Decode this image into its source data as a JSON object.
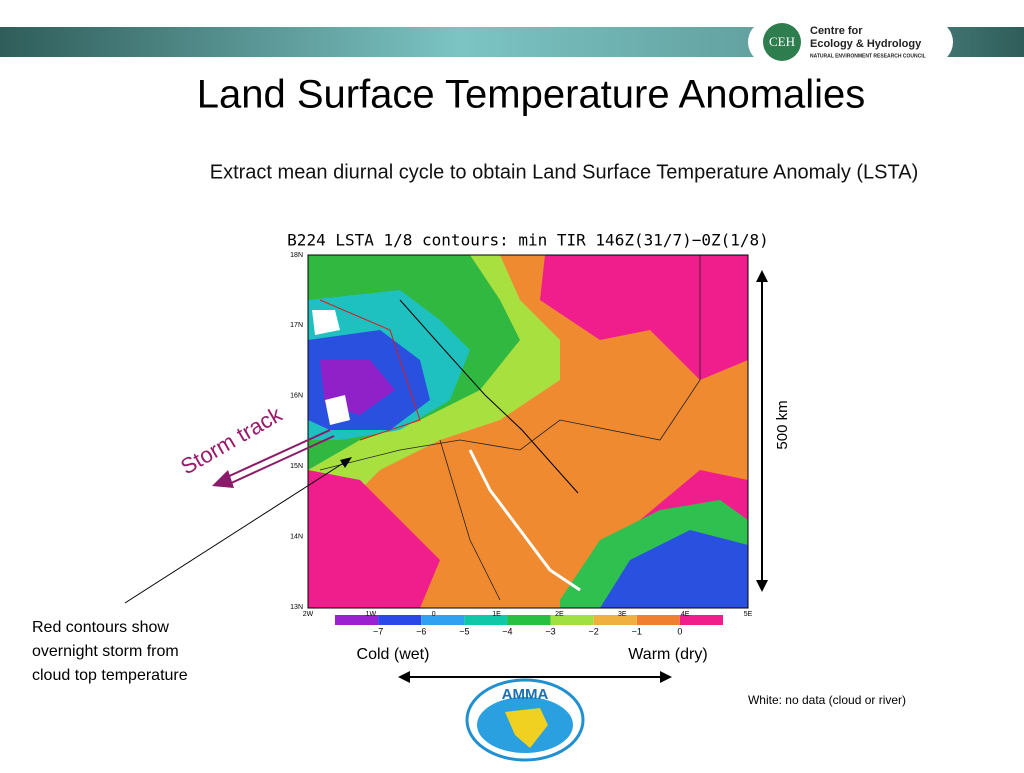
{
  "header": {
    "logo_initials": "CEH",
    "logo_line1": "Centre for",
    "logo_line2": "Ecology & Hydrology",
    "logo_line3": "NATURAL ENVIRONMENT RESEARCH COUNCIL"
  },
  "title": "Land Surface Temperature Anomalies",
  "subtitle": "Extract mean diurnal cycle to obtain Land Surface Temperature Anomaly (LSTA)",
  "figure": {
    "title": "B224 LSTA 1/8 contours: min TIR 146Z(31/7)−0Z(1/8)",
    "lat_labels": [
      "18N",
      "17N",
      "16N",
      "15N",
      "14N",
      "13N"
    ],
    "lon_labels": [
      "2W",
      "1W",
      "0",
      "1E",
      "2E",
      "3E",
      "4E",
      "5E"
    ],
    "colorbar_labels": [
      "−7",
      "−6",
      "−5",
      "−4",
      "−3",
      "−2",
      "−1",
      "0"
    ]
  },
  "annotations": {
    "storm_track": "Storm track",
    "distance": "500 km",
    "red_contours": [
      "Red contours show",
      "overnight storm from",
      "cloud top temperature"
    ],
    "cold": "Cold (wet)",
    "warm": "Warm (dry)",
    "white_note": "White: no data (cloud or river)",
    "amma": "AMMA"
  }
}
